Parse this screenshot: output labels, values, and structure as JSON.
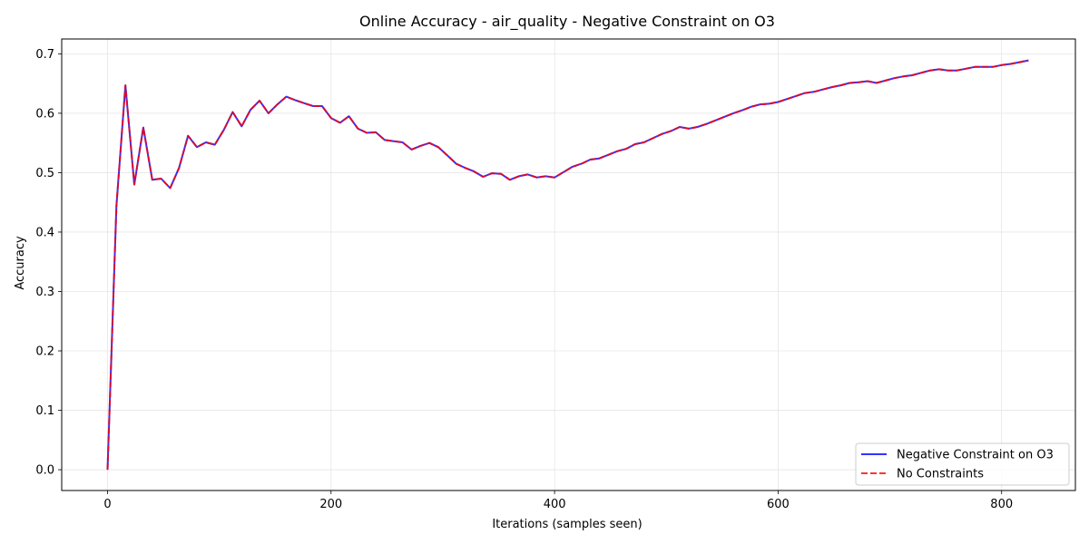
{
  "chart_data": {
    "type": "line",
    "title": "Online Accuracy - air_quality - Negative Constraint on O3",
    "xlabel": "Iterations (samples seen)",
    "ylabel": "Accuracy",
    "xlim": [
      -41,
      866
    ],
    "ylim": [
      -0.035,
      0.725
    ],
    "xticks": [
      0,
      200,
      400,
      600,
      800
    ],
    "xtick_labels": [
      "0",
      "200",
      "400",
      "600",
      "800"
    ],
    "yticks": [
      0.0,
      0.1,
      0.2,
      0.3,
      0.4,
      0.5,
      0.6,
      0.7
    ],
    "ytick_labels": [
      "0.0",
      "0.1",
      "0.2",
      "0.3",
      "0.4",
      "0.5",
      "0.6",
      "0.7"
    ],
    "grid": true,
    "legend_position": "lower-right",
    "x": [
      0,
      8,
      16,
      24,
      32,
      40,
      48,
      56,
      64,
      72,
      80,
      88,
      96,
      104,
      112,
      120,
      128,
      136,
      144,
      152,
      160,
      168,
      176,
      184,
      192,
      200,
      208,
      216,
      224,
      232,
      240,
      248,
      256,
      264,
      272,
      280,
      288,
      296,
      304,
      312,
      320,
      328,
      336,
      344,
      352,
      360,
      368,
      376,
      384,
      392,
      400,
      408,
      416,
      424,
      432,
      440,
      448,
      456,
      464,
      472,
      480,
      488,
      496,
      504,
      512,
      520,
      528,
      536,
      544,
      552,
      560,
      568,
      576,
      584,
      592,
      600,
      608,
      616,
      624,
      632,
      640,
      648,
      656,
      664,
      672,
      680,
      688,
      696,
      704,
      712,
      720,
      728,
      736,
      744,
      752,
      760,
      768,
      776,
      784,
      792,
      800,
      808,
      816,
      824
    ],
    "series": [
      {
        "name": "Negative Constraint on O3",
        "color": "#0000ff",
        "style": "solid",
        "values": [
          0.0,
          0.444,
          0.647,
          0.48,
          0.576,
          0.488,
          0.49,
          0.474,
          0.508,
          0.562,
          0.543,
          0.551,
          0.547,
          0.572,
          0.602,
          0.578,
          0.606,
          0.621,
          0.6,
          0.615,
          0.628,
          0.622,
          0.617,
          0.612,
          0.612,
          0.592,
          0.584,
          0.595,
          0.574,
          0.567,
          0.568,
          0.555,
          0.553,
          0.551,
          0.539,
          0.545,
          0.55,
          0.543,
          0.529,
          0.515,
          0.508,
          0.502,
          0.493,
          0.499,
          0.498,
          0.488,
          0.494,
          0.497,
          0.492,
          0.494,
          0.492,
          0.501,
          0.51,
          0.515,
          0.522,
          0.524,
          0.53,
          0.536,
          0.54,
          0.548,
          0.551,
          0.558,
          0.565,
          0.57,
          0.577,
          0.574,
          0.577,
          0.582,
          0.588,
          0.594,
          0.6,
          0.605,
          0.611,
          0.615,
          0.616,
          0.619,
          0.624,
          0.629,
          0.634,
          0.636,
          0.64,
          0.644,
          0.647,
          0.651,
          0.652,
          0.654,
          0.651,
          0.655,
          0.659,
          0.662,
          0.664,
          0.668,
          0.672,
          0.674,
          0.672,
          0.672,
          0.675,
          0.678,
          0.678,
          0.678,
          0.681,
          0.683,
          0.686,
          0.689
        ]
      },
      {
        "name": "No Constraints",
        "color": "#ff0000",
        "style": "dashed",
        "values": [
          0.0,
          0.444,
          0.647,
          0.48,
          0.576,
          0.488,
          0.49,
          0.474,
          0.508,
          0.562,
          0.543,
          0.551,
          0.547,
          0.572,
          0.602,
          0.578,
          0.606,
          0.621,
          0.6,
          0.615,
          0.628,
          0.622,
          0.617,
          0.612,
          0.612,
          0.592,
          0.584,
          0.595,
          0.574,
          0.567,
          0.568,
          0.555,
          0.553,
          0.551,
          0.539,
          0.545,
          0.55,
          0.543,
          0.529,
          0.515,
          0.508,
          0.502,
          0.493,
          0.499,
          0.498,
          0.488,
          0.494,
          0.497,
          0.492,
          0.494,
          0.492,
          0.501,
          0.51,
          0.515,
          0.522,
          0.524,
          0.53,
          0.536,
          0.54,
          0.548,
          0.551,
          0.558,
          0.565,
          0.57,
          0.577,
          0.574,
          0.577,
          0.582,
          0.588,
          0.594,
          0.6,
          0.605,
          0.611,
          0.615,
          0.616,
          0.619,
          0.624,
          0.629,
          0.634,
          0.636,
          0.64,
          0.644,
          0.647,
          0.651,
          0.652,
          0.654,
          0.651,
          0.655,
          0.659,
          0.662,
          0.664,
          0.668,
          0.672,
          0.674,
          0.672,
          0.672,
          0.675,
          0.678,
          0.678,
          0.678,
          0.681,
          0.683,
          0.686,
          0.689
        ]
      }
    ]
  }
}
